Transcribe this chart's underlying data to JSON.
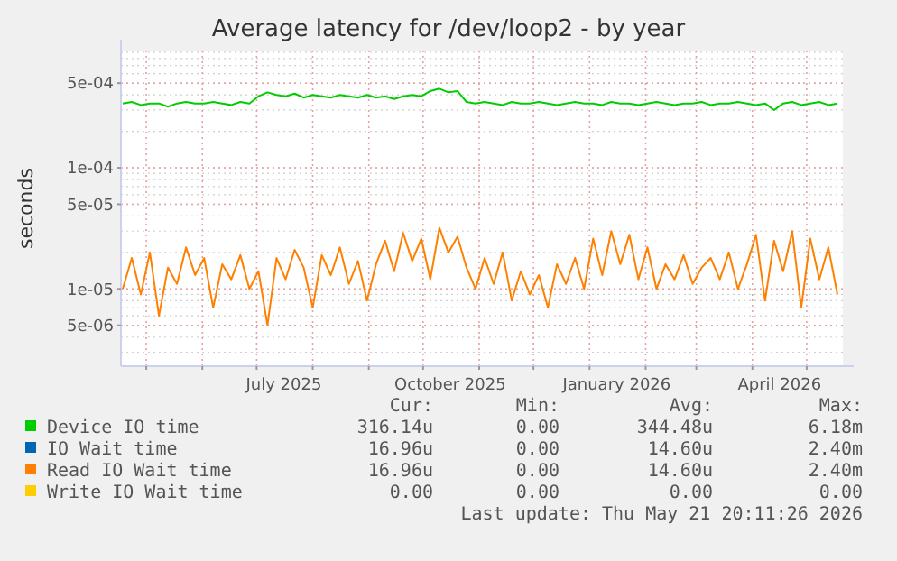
{
  "chart_data": {
    "type": "line",
    "title": "Average latency for /dev/loop2 - by year",
    "ylabel": "seconds",
    "log": "y",
    "grid": true,
    "legend": "bottom",
    "xlim": [
      "2025-04-17",
      "2026-05-21"
    ],
    "xticks": [
      {
        "value": "2025-05-01",
        "label": null
      },
      {
        "value": "2025-06-01",
        "label": null
      },
      {
        "value": "2025-07-01",
        "label": null
      },
      {
        "value": "2025-07-16",
        "label": "July 2025"
      },
      {
        "value": "2025-08-01",
        "label": null
      },
      {
        "value": "2025-09-01",
        "label": null
      },
      {
        "value": "2025-10-01",
        "label": null
      },
      {
        "value": "2025-10-16",
        "label": "October 2025"
      },
      {
        "value": "2025-11-01",
        "label": null
      },
      {
        "value": "2025-12-01",
        "label": null
      },
      {
        "value": "2026-01-01",
        "label": null
      },
      {
        "value": "2026-01-16",
        "label": "January 2026"
      },
      {
        "value": "2026-02-01",
        "label": null
      },
      {
        "value": "2026-03-01",
        "label": null
      },
      {
        "value": "2026-04-01",
        "label": null
      },
      {
        "value": "2026-04-16",
        "label": "April 2026"
      },
      {
        "value": "2026-05-01",
        "label": null
      }
    ],
    "ylim": [
      2.3e-06,
      0.00093
    ],
    "yticks": [
      {
        "value": 5e-06,
        "label": "5e-06"
      },
      {
        "value": 1e-05,
        "label": "1e-05"
      },
      {
        "value": 5e-05,
        "label": "5e-05"
      },
      {
        "value": 0.0001,
        "label": "1e-04"
      },
      {
        "value": 0.0005,
        "label": "5e-04"
      }
    ],
    "x": [
      "2025-04-18",
      "2025-04-23",
      "2025-04-28",
      "2025-05-03",
      "2025-05-08",
      "2025-05-13",
      "2025-05-18",
      "2025-05-23",
      "2025-05-28",
      "2025-06-02",
      "2025-06-07",
      "2025-06-12",
      "2025-06-17",
      "2025-06-22",
      "2025-06-27",
      "2025-07-02",
      "2025-07-07",
      "2025-07-12",
      "2025-07-17",
      "2025-07-22",
      "2025-07-27",
      "2025-08-01",
      "2025-08-06",
      "2025-08-11",
      "2025-08-16",
      "2025-08-21",
      "2025-08-26",
      "2025-08-31",
      "2025-09-05",
      "2025-09-10",
      "2025-09-15",
      "2025-09-20",
      "2025-09-25",
      "2025-09-30",
      "2025-10-05",
      "2025-10-10",
      "2025-10-15",
      "2025-10-20",
      "2025-10-25",
      "2025-10-30",
      "2025-11-04",
      "2025-11-09",
      "2025-11-14",
      "2025-11-19",
      "2025-11-24",
      "2025-11-29",
      "2025-12-04",
      "2025-12-09",
      "2025-12-14",
      "2025-12-19",
      "2025-12-24",
      "2025-12-29",
      "2026-01-03",
      "2026-01-08",
      "2026-01-13",
      "2026-01-18",
      "2026-01-23",
      "2026-01-28",
      "2026-02-02",
      "2026-02-07",
      "2026-02-12",
      "2026-02-17",
      "2026-02-22",
      "2026-02-27",
      "2026-03-04",
      "2026-03-09",
      "2026-03-14",
      "2026-03-19",
      "2026-03-24",
      "2026-03-29",
      "2026-04-03",
      "2026-04-08",
      "2026-04-13",
      "2026-04-18",
      "2026-04-23",
      "2026-04-28",
      "2026-05-03",
      "2026-05-08",
      "2026-05-13",
      "2026-05-18"
    ],
    "series": [
      {
        "name": "Device IO time",
        "color": "#00cc00",
        "values": [
          0.00034,
          0.00035,
          0.00033,
          0.00034,
          0.00034,
          0.00032,
          0.00034,
          0.00035,
          0.00034,
          0.00034,
          0.00035,
          0.00034,
          0.00033,
          0.00035,
          0.00034,
          0.00039,
          0.00042,
          0.0004,
          0.00039,
          0.00041,
          0.00038,
          0.0004,
          0.00039,
          0.00038,
          0.0004,
          0.00039,
          0.00038,
          0.0004,
          0.00038,
          0.00039,
          0.00037,
          0.00039,
          0.0004,
          0.00039,
          0.00043,
          0.00045,
          0.00042,
          0.00043,
          0.00035,
          0.00034,
          0.00035,
          0.00034,
          0.00033,
          0.00035,
          0.00034,
          0.00034,
          0.00035,
          0.00034,
          0.00033,
          0.00034,
          0.00035,
          0.00034,
          0.00034,
          0.00033,
          0.00035,
          0.00034,
          0.00034,
          0.00033,
          0.00034,
          0.00035,
          0.00034,
          0.00033,
          0.00034,
          0.00034,
          0.00035,
          0.00033,
          0.00034,
          0.00034,
          0.00035,
          0.00034,
          0.00033,
          0.00034,
          0.0003,
          0.00034,
          0.00035,
          0.00033,
          0.00034,
          0.00035,
          0.00033,
          0.00034
        ]
      },
      {
        "name": "IO Wait time",
        "color": "#0066b3",
        "values": [
          null,
          null,
          null,
          null,
          null,
          null,
          null,
          null,
          null,
          null,
          null,
          null,
          null,
          null,
          null,
          null,
          null,
          null,
          null,
          null,
          null,
          null,
          null,
          null,
          null,
          null,
          null,
          null,
          null,
          null,
          null,
          null,
          null,
          null,
          null,
          null,
          null,
          null,
          null,
          null,
          null,
          null,
          null,
          null,
          null,
          null,
          null,
          null,
          null,
          null,
          null,
          null,
          null,
          null,
          null,
          null,
          null,
          null,
          null,
          null,
          null,
          null,
          null,
          null,
          null,
          null,
          null,
          null,
          null,
          null,
          null,
          null,
          null,
          null,
          null,
          null,
          null,
          null,
          null,
          null
        ]
      },
      {
        "name": "Read IO Wait time",
        "color": "#ff8000",
        "values": [
          1e-05,
          1.8e-05,
          9e-06,
          2e-05,
          6e-06,
          1.5e-05,
          1.1e-05,
          2.2e-05,
          1.3e-05,
          1.8e-05,
          7e-06,
          1.6e-05,
          1.2e-05,
          1.9e-05,
          1e-05,
          1.4e-05,
          5e-06,
          1.8e-05,
          1.2e-05,
          2.1e-05,
          1.5e-05,
          7e-06,
          1.9e-05,
          1.3e-05,
          2.2e-05,
          1.1e-05,
          1.7e-05,
          8e-06,
          1.6e-05,
          2.5e-05,
          1.4e-05,
          2.9e-05,
          1.7e-05,
          2.6e-05,
          1.2e-05,
          3.2e-05,
          2e-05,
          2.7e-05,
          1.5e-05,
          1e-05,
          1.8e-05,
          1.1e-05,
          2e-05,
          8e-06,
          1.4e-05,
          9e-06,
          1.3e-05,
          7e-06,
          1.6e-05,
          1.1e-05,
          1.8e-05,
          1e-05,
          2.6e-05,
          1.3e-05,
          3e-05,
          1.6e-05,
          2.8e-05,
          1.2e-05,
          2.2e-05,
          1e-05,
          1.6e-05,
          1.2e-05,
          1.9e-05,
          1.1e-05,
          1.5e-05,
          1.8e-05,
          1.2e-05,
          2e-05,
          1e-05,
          1.6e-05,
          2.8e-05,
          8e-06,
          2.5e-05,
          1.4e-05,
          3e-05,
          7e-06,
          2.6e-05,
          1.2e-05,
          2.2e-05,
          9e-06
        ]
      },
      {
        "name": "Write IO Wait time",
        "color": "#ffcc00",
        "values": [
          null,
          null,
          null,
          null,
          null,
          null,
          null,
          null,
          null,
          null,
          null,
          null,
          null,
          null,
          null,
          null,
          null,
          null,
          null,
          null,
          null,
          null,
          null,
          null,
          null,
          null,
          null,
          null,
          null,
          null,
          null,
          null,
          null,
          null,
          null,
          null,
          null,
          null,
          null,
          null,
          null,
          null,
          null,
          null,
          null,
          null,
          null,
          null,
          null,
          null,
          null,
          null,
          null,
          null,
          null,
          null,
          null,
          null,
          null,
          null,
          null,
          null,
          null,
          null,
          null,
          null,
          null,
          null,
          null,
          null,
          null,
          null,
          null,
          null,
          null,
          null,
          null,
          null,
          null,
          null
        ]
      }
    ],
    "annotations": [
      "Cur:",
      "Min:",
      "Avg:",
      "Max:",
      "316.14u",
      "0.00",
      "344.48u",
      "6.18m",
      "16.96u",
      "0.00",
      "14.60u",
      "2.40m",
      "16.96u",
      "0.00",
      "14.60u",
      "2.40m",
      "0.00",
      "0.00",
      "0.00",
      "0.00",
      "Last update: Thu May 21 20:11:26 2026"
    ]
  }
}
